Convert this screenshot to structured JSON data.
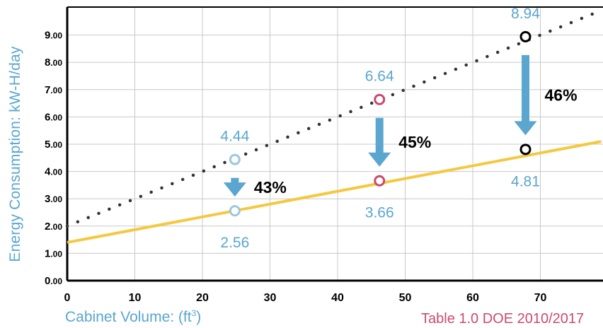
{
  "chart_data": {
    "type": "line",
    "xlabel": "Cabinet Volume: (ft",
    "xlabel_sup": "3",
    "xlabel_close": ")",
    "ylabel": "Energy Consumption: kW-H/day",
    "source_note": "Table 1.0 DOE 2010/2017",
    "xlim": [
      0,
      79
    ],
    "ylim": [
      0,
      10
    ],
    "x_ticks": [
      "0",
      "10",
      "20",
      "30",
      "40",
      "50",
      "60",
      "70"
    ],
    "y_ticks": [
      "0.00",
      "1.00",
      "2.00",
      "3.00",
      "4.00",
      "5.00",
      "6.00",
      "7.00",
      "8.00",
      "9.00"
    ],
    "grid": true,
    "series": [
      {
        "style": "dotted",
        "color": "#333333",
        "x": [
          0,
          79
        ],
        "y": [
          2.0,
          9.9
        ]
      },
      {
        "style": "solid",
        "color": "#f5c842",
        "x": [
          0,
          79
        ],
        "y": [
          1.4,
          5.1
        ]
      }
    ],
    "points": [
      {
        "x": 24.8,
        "top": 4.44,
        "top_label": "4.44",
        "bottom": 2.56,
        "bottom_label": "2.56",
        "color": "#9ec7de",
        "reduction": "43%"
      },
      {
        "x": 46.2,
        "top": 6.64,
        "top_label": "6.64",
        "bottom": 3.66,
        "bottom_label": "3.66",
        "color": "#c94b6f",
        "reduction": "45%"
      },
      {
        "x": 67.8,
        "top": 8.94,
        "top_label": "8.94",
        "bottom": 4.81,
        "bottom_label": "4.81",
        "color": "#000000",
        "reduction": "46%"
      }
    ],
    "colors": {
      "grid": "#c8c8c8",
      "axis": "#000000",
      "value_label": "#5aa6cf",
      "arrow": "#5aa6cf",
      "percent": "#000000"
    }
  }
}
